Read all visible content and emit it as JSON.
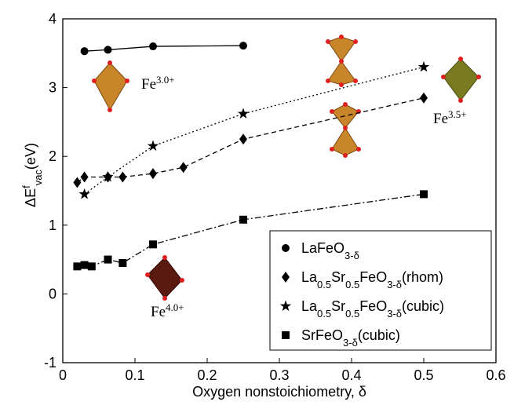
{
  "chart_data": {
    "type": "line",
    "x_label": "Oxygen nonstoichiometry, δ",
    "y_label": "ΔEfvac(eV)",
    "xlim": [
      0,
      0.6
    ],
    "xticks": [
      0,
      0.1,
      0.2,
      0.3,
      0.4,
      0.5,
      0.6
    ],
    "ylim": [
      -1,
      4
    ],
    "yticks": [
      -1,
      0,
      1,
      2,
      3,
      4
    ],
    "legend": "lower right",
    "series": [
      {
        "name": "LaFeO3-δ",
        "color": "#000000",
        "marker": "circle",
        "line_style": "solid",
        "x": [
          0.03,
          0.0625,
          0.125,
          0.25
        ],
        "values": [
          3.53,
          3.55,
          3.6,
          3.61
        ]
      },
      {
        "name": "La0.5Sr0.5FeO3-δ(rhom)",
        "color": "#000000",
        "marker": "diamond",
        "line_style": "dashed",
        "x": [
          0.02,
          0.03,
          0.0625,
          0.083,
          0.125,
          0.167,
          0.25,
          0.5
        ],
        "values": [
          1.62,
          1.7,
          1.7,
          1.7,
          1.75,
          1.84,
          2.25,
          2.85
        ]
      },
      {
        "name": "La0.5Sr0.5FeO3-δ(cubic)",
        "color": "#000000",
        "marker": "star",
        "line_style": "dotted",
        "x": [
          0.03,
          0.0625,
          0.125,
          0.25,
          0.5
        ],
        "values": [
          1.45,
          1.7,
          2.15,
          2.62,
          3.3
        ]
      },
      {
        "name": "SrFeO3-δ(cubic)",
        "color": "#000000",
        "marker": "square",
        "line_style": "dashdot",
        "x": [
          0.02,
          0.03,
          0.04,
          0.0625,
          0.083,
          0.125,
          0.25,
          0.5
        ],
        "values": [
          0.4,
          0.42,
          0.4,
          0.5,
          0.45,
          0.72,
          1.08,
          1.45
        ]
      }
    ],
    "annotations": [
      "Fe3.0+",
      "Fe3.5+",
      "Fe4.0+"
    ]
  }
}
